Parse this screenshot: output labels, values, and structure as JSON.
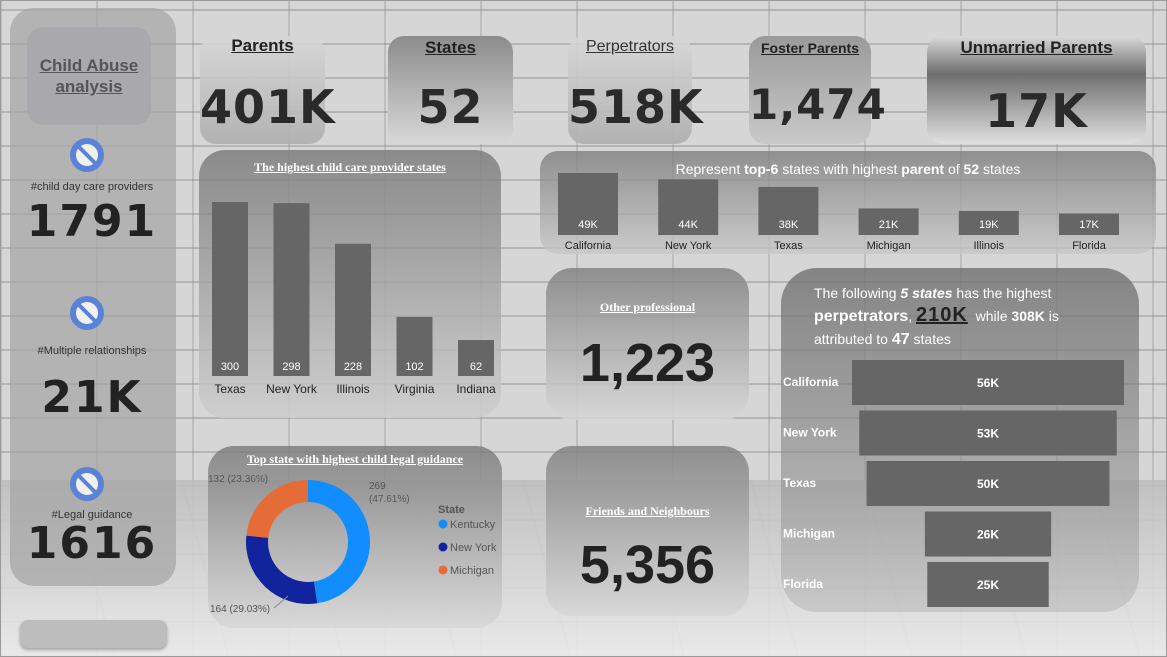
{
  "sidebar": {
    "title": "Child Abuse analysis",
    "metrics": [
      {
        "icon": "ban-icon",
        "label": "#child day care providers",
        "value": "1791"
      },
      {
        "icon": "ban-icon",
        "label": "#Multiple relationships",
        "value": "21K"
      },
      {
        "icon": "ban-icon",
        "label": "#Legal guidance",
        "value": "1616"
      }
    ]
  },
  "kpis": {
    "parents": {
      "label": "Parents",
      "value": "401K"
    },
    "states": {
      "label": "States",
      "value": "52"
    },
    "perpetrators": {
      "label": "Perpetrators",
      "value": "518K"
    },
    "foster_parents": {
      "label": "Foster Parents",
      "value": "1,474"
    },
    "unmarried_parents": {
      "label": "Unmarried Parents",
      "value": "17K"
    }
  },
  "other_professional": {
    "label": "Other professional",
    "value": "1,223"
  },
  "friends_neighbours": {
    "label": "Friends and Neighbours",
    "value": "5,356"
  },
  "top6_caption": {
    "p1": "Represent ",
    "b1": "top-6",
    "p2": " states with highest ",
    "b2": "parent",
    "p3": " of ",
    "b3": "52",
    "p4": " states"
  },
  "perp_caption": {
    "line1_a": "The following ",
    "line1_b": "5 states",
    "line1_c": " has the highest",
    "line2_a": "perpetrators",
    "line2_b": ", ",
    "line2_c": "210K",
    "line2_d": "  while ",
    "line2_e": "308K",
    "line2_f": " is",
    "line3_a": "attributed to ",
    "line3_b": "47",
    "line3_c": " states"
  },
  "colors": {
    "bar": "#666666",
    "donut_kentucky": "#118DFF",
    "donut_newyork": "#12239E",
    "donut_michigan": "#E66C37"
  },
  "chart_data": [
    {
      "id": "child_care",
      "type": "bar",
      "title": "The highest child care provider states",
      "categories": [
        "Texas",
        "New York",
        "Illinois",
        "Virginia",
        "Indiana"
      ],
      "values": [
        300,
        298,
        228,
        102,
        62
      ],
      "data_labels": [
        "300",
        "298",
        "228",
        "102",
        "62"
      ]
    },
    {
      "id": "top6_parents",
      "type": "bar",
      "title": "",
      "categories": [
        "California",
        "New York",
        "Texas",
        "Michigan",
        "Illinois",
        "Florida"
      ],
      "values": [
        49000,
        44000,
        38000,
        21000,
        19000,
        17000
      ],
      "data_labels": [
        "49K",
        "44K",
        "38K",
        "21K",
        "19K",
        "17K"
      ]
    },
    {
      "id": "legal_guidance",
      "type": "pie",
      "title": "Top state with highest  child legal guidance",
      "legend_title": "State",
      "legend_position": "right",
      "slices": [
        {
          "name": "Kentucky",
          "value": 269,
          "label": "269 (47.61%)"
        },
        {
          "name": "New York",
          "value": 164,
          "label": "164 (29.03%)"
        },
        {
          "name": "Michigan",
          "value": 132,
          "label": "132 (23.36%)"
        }
      ]
    },
    {
      "id": "perpetrators_top5",
      "type": "bar",
      "orientation": "horizontal",
      "title": "",
      "categories": [
        "California",
        "New York",
        "Texas",
        "Michigan",
        "Florida"
      ],
      "values": [
        56000,
        53000,
        50000,
        26000,
        25000
      ],
      "data_labels": [
        "56K",
        "53K",
        "50K",
        "26K",
        "25K"
      ]
    }
  ]
}
